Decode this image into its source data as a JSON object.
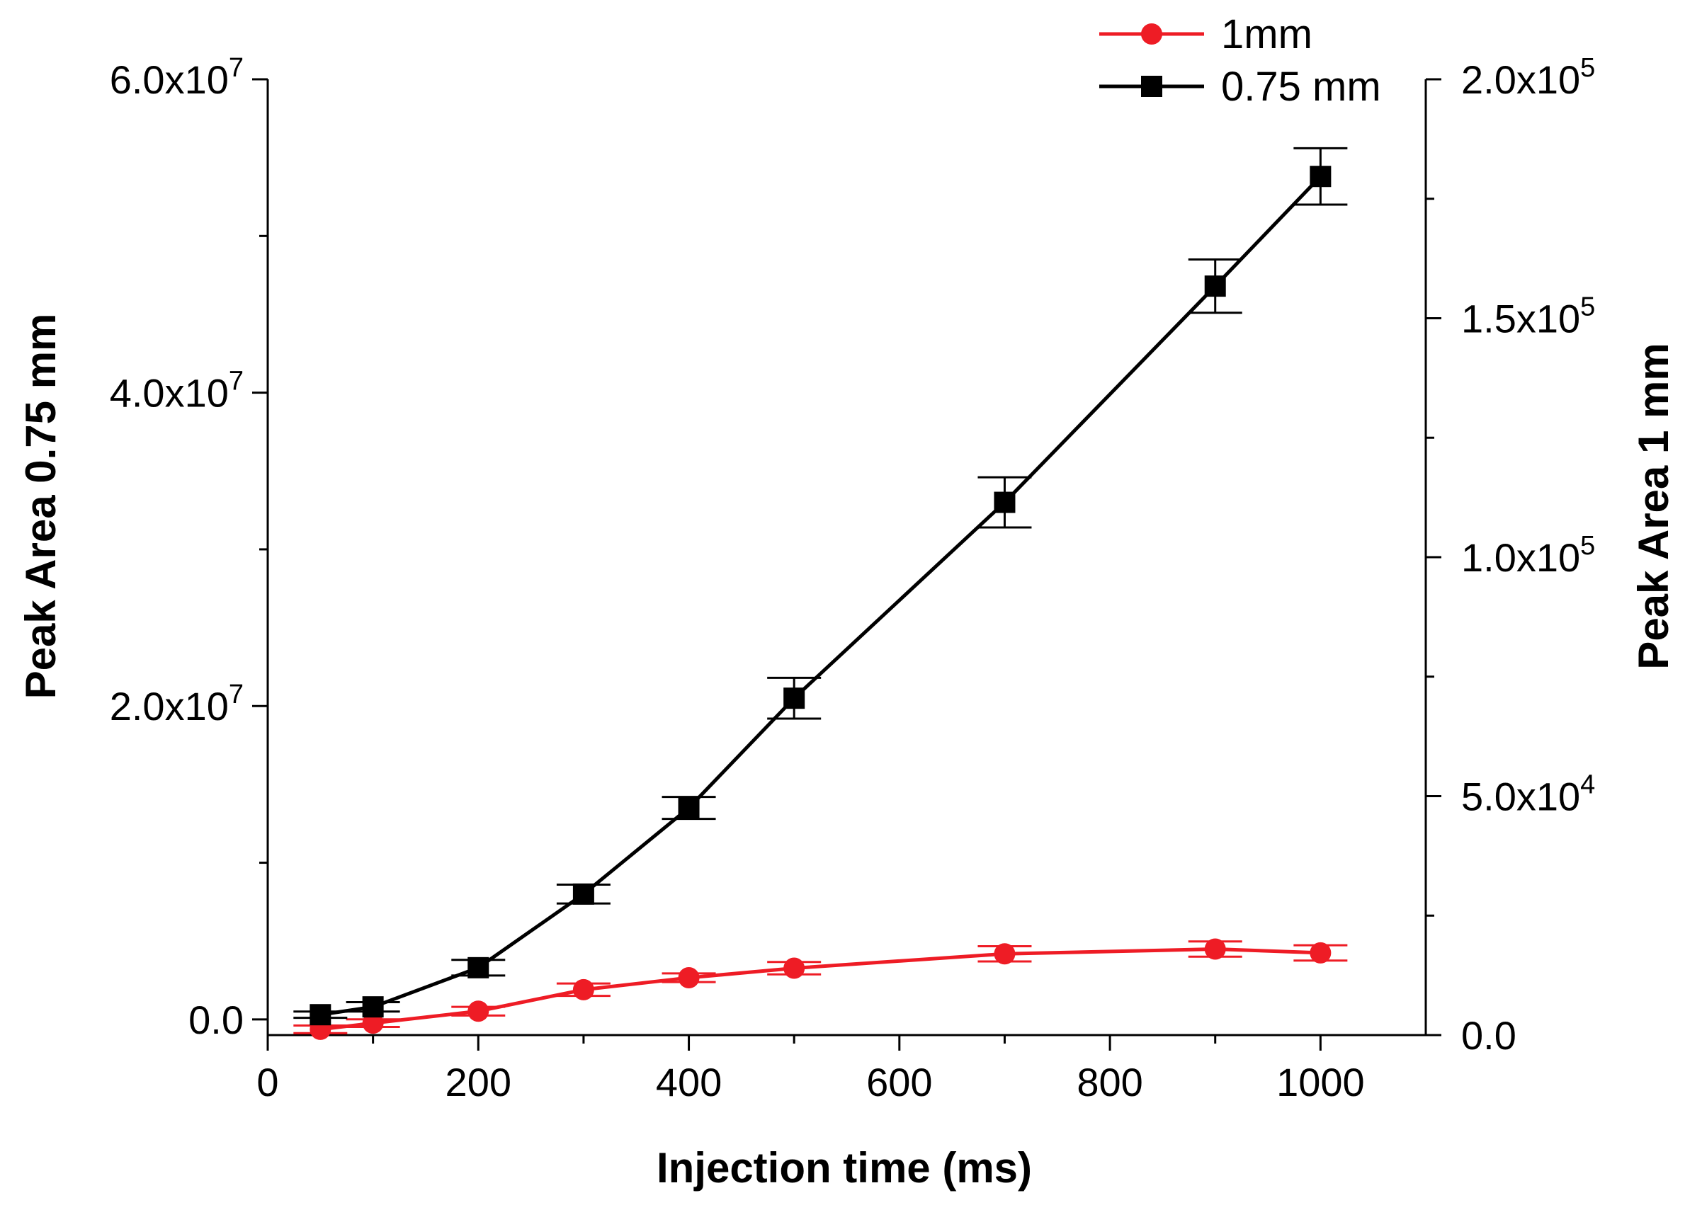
{
  "chart_data": {
    "type": "line",
    "title": "",
    "xlabel": "Injection time (ms)",
    "ylabel_left": "Peak Area 0.75 mm",
    "ylabel_right": "Peak Area 1 mm",
    "xlim": [
      0,
      1100
    ],
    "ylim_left": [
      -1000000,
      60000000
    ],
    "ylim_right": [
      0,
      200000
    ],
    "x_ticks": [
      "0",
      "200",
      "400",
      "600",
      "800",
      "1000"
    ],
    "y_left_ticks": [
      {
        "value": 0,
        "mantissa": "0.0",
        "exp": ""
      },
      {
        "value": 20000000,
        "mantissa": "2.0x10",
        "exp": "7"
      },
      {
        "value": 40000000,
        "mantissa": "4.0x10",
        "exp": "7"
      },
      {
        "value": 60000000,
        "mantissa": "6.0x10",
        "exp": "7"
      }
    ],
    "y_right_ticks": [
      {
        "value": 0,
        "mantissa": "0.0",
        "exp": ""
      },
      {
        "value": 50000,
        "mantissa": "5.0x10",
        "exp": "4"
      },
      {
        "value": 100000,
        "mantissa": "1.0x10",
        "exp": "5"
      },
      {
        "value": 150000,
        "mantissa": "1.5x10",
        "exp": "5"
      },
      {
        "value": 200000,
        "mantissa": "2.0x10",
        "exp": "5"
      }
    ],
    "series": [
      {
        "name": "1mm",
        "axis": "right",
        "color": "#ee1c25",
        "marker": "circle",
        "x": [
          50,
          100,
          200,
          300,
          400,
          500,
          700,
          900,
          1000
        ],
        "values": [
          1200,
          2500,
          5000,
          9500,
          12000,
          14000,
          17000,
          18000,
          17200
        ],
        "errors": [
          800,
          800,
          900,
          1300,
          900,
          1300,
          1600,
          1600,
          1600
        ]
      },
      {
        "name": "0.75 mm",
        "axis": "left",
        "color": "#000000",
        "marker": "square",
        "x": [
          50,
          100,
          200,
          300,
          400,
          500,
          700,
          900,
          1000
        ],
        "values": [
          300000,
          800000,
          3300000,
          8000000,
          13500000,
          20500000,
          33000000,
          46800000,
          53800000
        ],
        "errors": [
          200000,
          300000,
          500000,
          600000,
          700000,
          1300000,
          1600000,
          1700000,
          1800000
        ]
      }
    ],
    "legend": {
      "position": "top-right"
    }
  }
}
